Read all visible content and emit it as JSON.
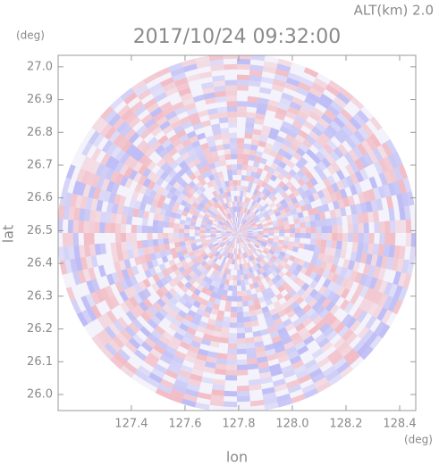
{
  "chart_data": {
    "type": "radar-ppi",
    "title": "2017/10/24 09:32:00",
    "subtitle": "ALT(km) 2.0",
    "xlabel": "lon",
    "ylabel": "lat",
    "xunit": "(deg)",
    "yunit": "(deg)",
    "xlim": [
      127.127,
      128.46
    ],
    "ylim": [
      25.951,
      27.035
    ],
    "xticks": [
      127.4,
      127.6,
      127.8,
      {
        "value": 128.0,
        "label": "128.0"
      },
      128.2,
      128.4
    ],
    "yticks": [
      {
        "value": 26.0,
        "label": "26.0"
      },
      26.1,
      26.2,
      26.3,
      26.4,
      26.5,
      26.6,
      26.7,
      26.8,
      26.9,
      {
        "value": 27.0,
        "label": "27.0"
      }
    ]
  }
}
